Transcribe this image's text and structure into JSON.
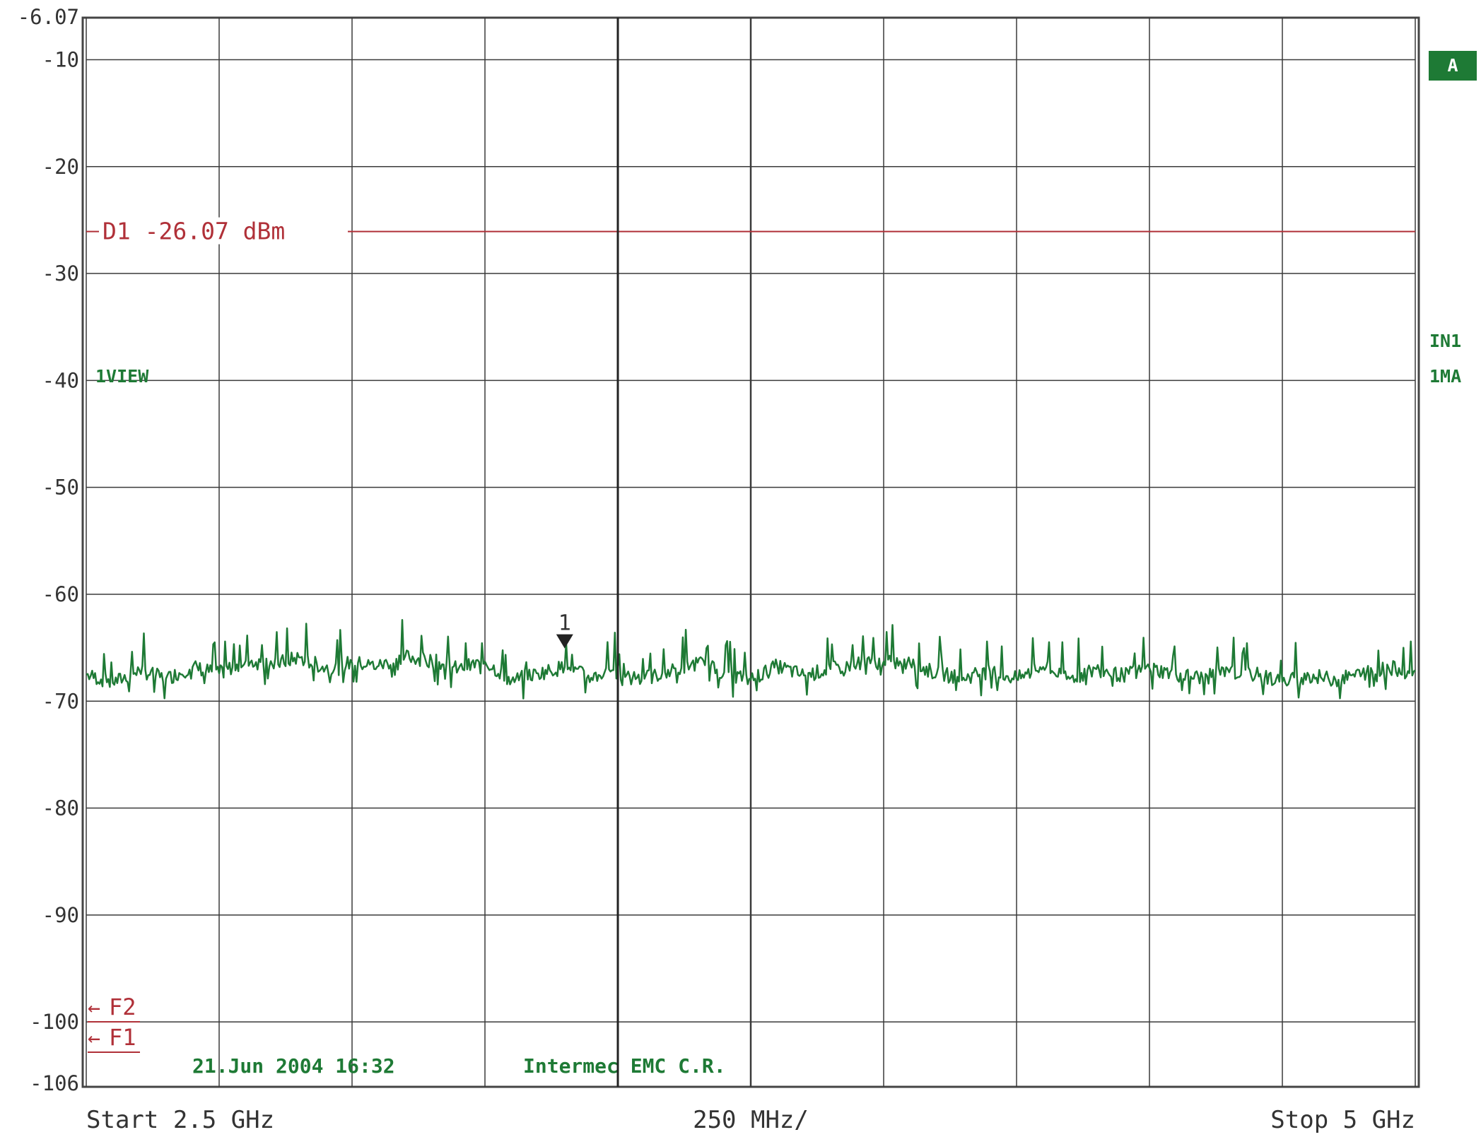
{
  "chart_data": {
    "type": "line",
    "instrument_view": "spectrum",
    "y_axis": {
      "top_label": "-6.07",
      "bottom_label": "-106",
      "range": [
        -106.07,
        -6.07
      ],
      "ticks": [
        "-10",
        "-20",
        "-30",
        "-40",
        "-50",
        "-60",
        "-70",
        "-80",
        "-90",
        "-100"
      ]
    },
    "x_axis": {
      "start_label": "Start 2.5 GHz",
      "span_label": "250 MHz/",
      "stop_label": "Stop 5 GHz",
      "range_ghz": [
        2.5,
        5.0
      ]
    },
    "grid": true,
    "display_line": {
      "label": "D1 -26.07 dBm",
      "level_dbm": -26.07,
      "color": "#b03038"
    },
    "marker": {
      "label": "1",
      "x_ghz": 3.4,
      "y_dbm": -65.2,
      "line_x_ghz": 3.5
    },
    "annotations": {
      "trace_label": "1VIEW",
      "badge": "A",
      "right_top": "IN1",
      "right_bottom": "1MA",
      "f2": "F2",
      "f1": "F1",
      "date": "21.Jun 2004 16:32",
      "lab": "Intermec EMC C.R."
    },
    "series": [
      {
        "color": "#1e7a35",
        "x_ghz": [
          2.5,
          2.55,
          2.6,
          2.65,
          2.7,
          2.75,
          2.8,
          2.85,
          2.9,
          2.95,
          3.0,
          3.05,
          3.1,
          3.15,
          3.2,
          3.25,
          3.3,
          3.35,
          3.4,
          3.45,
          3.5,
          3.55,
          3.6,
          3.65,
          3.7,
          3.75,
          3.8,
          3.85,
          3.9,
          3.95,
          4.0,
          4.05,
          4.1,
          4.15,
          4.2,
          4.25,
          4.3,
          4.35,
          4.4,
          4.45,
          4.5,
          4.55,
          4.6,
          4.65,
          4.7,
          4.75,
          4.8,
          4.85,
          4.9,
          4.95,
          5.0
        ],
        "y_dbm": [
          -67.5,
          -68.3,
          -67.1,
          -67.9,
          -66.8,
          -67.4,
          -66.2,
          -66.6,
          -65.9,
          -66.9,
          -66.4,
          -66.7,
          -65.8,
          -66.2,
          -67.0,
          -66.3,
          -68.1,
          -67.4,
          -66.8,
          -67.8,
          -66.9,
          -67.9,
          -67.2,
          -66.4,
          -67.3,
          -68.0,
          -66.7,
          -67.6,
          -67.0,
          -66.5,
          -66.3,
          -66.5,
          -67.4,
          -67.8,
          -67.2,
          -67.9,
          -66.8,
          -67.9,
          -67.0,
          -67.6,
          -66.9,
          -67.5,
          -67.8,
          -67.3,
          -67.5,
          -68.2,
          -67.6,
          -68.0,
          -67.4,
          -66.9,
          -67.1
        ]
      }
    ]
  }
}
